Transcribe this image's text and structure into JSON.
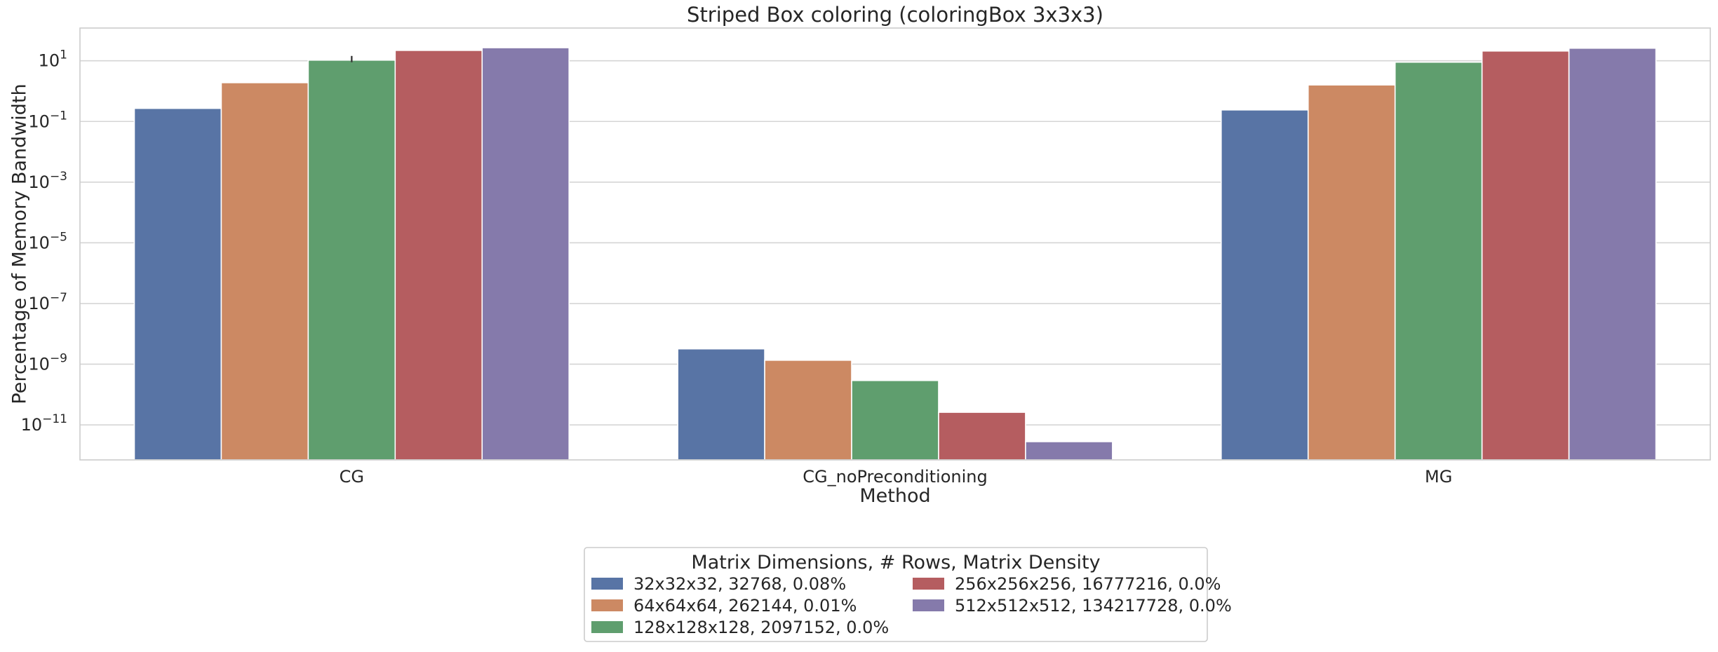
{
  "chart_data": {
    "type": "bar",
    "title": "Striped Box coloring (coloringBox 3x3x3)",
    "xlabel": "Method",
    "ylabel": "Percentage of Memory Bandwidth",
    "yscale": "log",
    "ylim": [
      7e-13,
      120
    ],
    "yticks": [
      {
        "value": 10,
        "base": "10",
        "exp": "1"
      },
      {
        "value": 0.1,
        "base": "10",
        "exp": "−1"
      },
      {
        "value": 0.001,
        "base": "10",
        "exp": "−3"
      },
      {
        "value": 1e-05,
        "base": "10",
        "exp": "−5"
      },
      {
        "value": 1e-07,
        "base": "10",
        "exp": "−7"
      },
      {
        "value": 1e-09,
        "base": "10",
        "exp": "−9"
      },
      {
        "value": 1e-11,
        "base": "10",
        "exp": "−11"
      }
    ],
    "grid": true,
    "categories": [
      "CG",
      "CG_noPreconditioning",
      "MG"
    ],
    "legend": {
      "title": "Matrix Dimensions, # Rows, Matrix Density",
      "placement": "below",
      "columns": 2
    },
    "series": [
      {
        "name": "32x32x32, 32768, 0.08%",
        "color": "#5874a5",
        "values": [
          0.27,
          3.2e-09,
          0.24
        ]
      },
      {
        "name": "64x64x64, 262144, 0.01%",
        "color": "#cc8963",
        "values": [
          1.9,
          1.35e-09,
          1.6
        ]
      },
      {
        "name": "128x128x128, 2097152, 0.0%",
        "color": "#5f9e6e",
        "values": [
          10.5,
          2.9e-10,
          9.0
        ]
      },
      {
        "name": "256x256x256, 16777216, 0.0%",
        "color": "#b55d60",
        "values": [
          22.0,
          2.6e-11,
          21.0
        ]
      },
      {
        "name": "512x512x512, 134217728, 0.0%",
        "color": "#857aab",
        "values": [
          27.0,
          2.8e-12,
          26.0
        ]
      }
    ]
  }
}
